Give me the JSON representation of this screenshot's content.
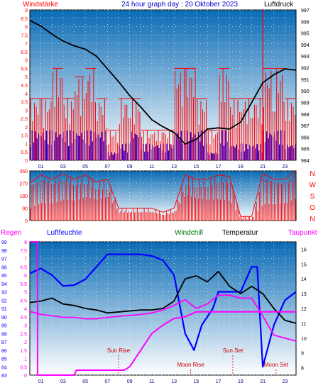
{
  "colors": {
    "frame": "#000000",
    "plot_top": "#0a6bb5",
    "plot_bottom": "#ffffff",
    "wind_gust": "#ff0000",
    "wind_avg": "#0000ff",
    "pressure": "#000000",
    "direction": "#ff0000",
    "rain": "#ff00ff",
    "humidity": "#0000ff",
    "windchill": "#007700",
    "temperature": "#000000",
    "dewpoint": "#ff00ff",
    "marker": "#cc0000"
  },
  "header": {
    "left": "Windstärke",
    "center": "24 hour graph day : 20 Oktober 2023",
    "right": "Luftdruck"
  },
  "direction_labels": [
    "N",
    "W",
    "S",
    "O",
    "N"
  ],
  "lower_header": {
    "regen": "Regen",
    "luftfeuchte": "Luftfeuchte",
    "windchill": "Windchill",
    "temperatur": "Temperatur",
    "taupunkt": "Taupunkt"
  },
  "annotations": {
    "sun_rise": "Sun Rise",
    "moon_rise": "Moon Rise",
    "sun_set": "Sun Set",
    "moon_set": "Moon Set"
  },
  "chart_data": [
    {
      "type": "line",
      "panel": "wind_pressure",
      "x_ticks": [
        "01",
        "03",
        "05",
        "07",
        "09",
        "11",
        "13",
        "15",
        "17",
        "19",
        "21",
        "23"
      ],
      "y_left_ticks": [
        "0",
        "0.5",
        "1",
        "1.5",
        "2",
        "2.5",
        "3",
        "3.5",
        "4",
        "4.5",
        "5",
        "5.5",
        "6",
        "6.5",
        "7",
        "7.5",
        "8",
        "8.5",
        "9"
      ],
      "y_left_range": [
        0,
        9
      ],
      "y_right_ticks": [
        "984",
        "985",
        "986",
        "987",
        "988",
        "989",
        "990",
        "991",
        "992",
        "993",
        "994",
        "995",
        "996",
        "997"
      ],
      "y_right_range": [
        984,
        997
      ],
      "pressure": [
        [
          0,
          996.1
        ],
        [
          1,
          995.6
        ],
        [
          2,
          994.9
        ],
        [
          3,
          994.3
        ],
        [
          4,
          993.9
        ],
        [
          5,
          993.6
        ],
        [
          6,
          993.0
        ],
        [
          7,
          991.9
        ],
        [
          8,
          990.8
        ],
        [
          9,
          989.6
        ],
        [
          10,
          988.6
        ],
        [
          11,
          987.5
        ],
        [
          12,
          986.9
        ],
        [
          13,
          986.4
        ],
        [
          14,
          985.4
        ],
        [
          15,
          985.8
        ],
        [
          16,
          986.7
        ],
        [
          17,
          986.8
        ],
        [
          18,
          986.7
        ],
        [
          19,
          987.3
        ],
        [
          20,
          989.0
        ],
        [
          21,
          990.7
        ],
        [
          22,
          991.4
        ],
        [
          23,
          991.9
        ],
        [
          24,
          991.8
        ]
      ],
      "gust_blocks": [
        [
          0,
          3.7
        ],
        [
          1,
          3.7
        ],
        [
          2,
          5.5
        ],
        [
          3,
          3.7
        ],
        [
          4,
          5.0
        ],
        [
          5,
          5.5
        ],
        [
          6,
          3.7
        ],
        [
          7,
          1.8
        ],
        [
          8,
          3.7
        ],
        [
          9,
          3.7
        ],
        [
          10,
          1.8
        ],
        [
          11,
          1.8
        ],
        [
          12,
          1.8
        ],
        [
          13,
          5.5
        ],
        [
          14,
          5.5
        ],
        [
          15,
          3.7
        ],
        [
          16,
          1.8
        ],
        [
          17,
          5.5
        ],
        [
          18,
          3.7
        ],
        [
          19,
          3.7
        ],
        [
          20,
          3.7
        ],
        [
          21,
          5.5
        ],
        [
          22,
          5.5
        ],
        [
          23,
          3.7
        ]
      ],
      "gust_peak": [
        21,
        9.0
      ],
      "avg_blocks": [
        [
          0,
          1.8
        ],
        [
          1,
          1.8
        ],
        [
          2,
          1.8
        ],
        [
          3,
          1.8
        ],
        [
          4,
          1.8
        ],
        [
          5,
          1.8
        ],
        [
          6,
          1.8
        ],
        [
          7,
          0.5
        ],
        [
          8,
          1.0
        ],
        [
          9,
          1.8
        ],
        [
          10,
          1.0
        ],
        [
          11,
          1.0
        ],
        [
          12,
          1.0
        ],
        [
          13,
          1.8
        ],
        [
          14,
          1.8
        ],
        [
          15,
          1.8
        ],
        [
          16,
          0.5
        ],
        [
          17,
          1.8
        ],
        [
          18,
          1.0
        ],
        [
          19,
          1.0
        ],
        [
          20,
          1.0
        ],
        [
          21,
          1.8
        ],
        [
          22,
          1.8
        ],
        [
          23,
          1.0
        ]
      ]
    },
    {
      "type": "area",
      "panel": "wind_direction",
      "x_ticks": [
        "01",
        "03",
        "05",
        "07",
        "09",
        "11",
        "13",
        "15",
        "17",
        "19",
        "21",
        "23"
      ],
      "y_ticks": [
        "0",
        "90",
        "180",
        "270",
        "360"
      ],
      "y_range": [
        0,
        360
      ],
      "direction": [
        [
          0,
          270
        ],
        [
          1,
          330
        ],
        [
          2,
          300
        ],
        [
          3,
          340
        ],
        [
          4,
          300
        ],
        [
          5,
          330
        ],
        [
          6,
          280
        ],
        [
          7,
          300
        ],
        [
          8,
          90
        ],
        [
          9,
          90
        ],
        [
          10,
          90
        ],
        [
          11,
          90
        ],
        [
          12,
          60
        ],
        [
          13,
          90
        ],
        [
          14,
          330
        ],
        [
          15,
          300
        ],
        [
          16,
          300
        ],
        [
          17,
          330
        ],
        [
          18,
          320
        ],
        [
          19,
          30
        ],
        [
          20,
          30
        ],
        [
          21,
          340
        ],
        [
          22,
          300
        ],
        [
          23,
          300
        ],
        [
          24,
          360
        ]
      ]
    },
    {
      "type": "line",
      "panel": "temperature_humidity",
      "x_ticks": [
        "01",
        "03",
        "05",
        "07",
        "09",
        "11",
        "13",
        "15",
        "17",
        "19",
        "21",
        "23"
      ],
      "y_left_rain_ticks": [
        "0",
        "0.5",
        "1",
        "1.5",
        "2",
        "2.5",
        "3",
        "3.5",
        "4",
        "4.5",
        "5",
        "5.5",
        "6",
        "6.5",
        "7",
        "7.5",
        "8"
      ],
      "y_left_rain_range": [
        0,
        8
      ],
      "y_left_humidity_ticks": [
        "83",
        "84",
        "85",
        "86",
        "87",
        "88",
        "89",
        "90",
        "91",
        "92",
        "93",
        "94",
        "95",
        "96",
        "97",
        "98",
        "99"
      ],
      "y_left_humidity_range": [
        83,
        99
      ],
      "y_right_ticks": [
        "8",
        "9",
        "10",
        "11",
        "12",
        "13",
        "14",
        "15",
        "16"
      ],
      "y_right_range": [
        7.5,
        16.5
      ],
      "series": [
        {
          "name": "Luftfeuchte",
          "values": [
            [
              0,
              95.2
            ],
            [
              1,
              95.8
            ],
            [
              2,
              95.0
            ],
            [
              3,
              93.7
            ],
            [
              4,
              93.8
            ],
            [
              5,
              94.5
            ],
            [
              6,
              96.0
            ],
            [
              7,
              97.5
            ],
            [
              10,
              97.5
            ],
            [
              11,
              97.3
            ],
            [
              12,
              96.8
            ],
            [
              13,
              95.0
            ],
            [
              14,
              88.0
            ],
            [
              14.8,
              86.0
            ],
            [
              15.5,
              89.0
            ],
            [
              16.5,
              91.0
            ],
            [
              17,
              93.0
            ],
            [
              18,
              93.0
            ],
            [
              19,
              93.0
            ],
            [
              20,
              96.0
            ],
            [
              20.5,
              96.0
            ],
            [
              21,
              84.0
            ],
            [
              22,
              89.0
            ],
            [
              23,
              92.0
            ],
            [
              24,
              93.0
            ]
          ]
        },
        {
          "name": "Temperatur",
          "values": [
            [
              0,
              12.4
            ],
            [
              1,
              12.5
            ],
            [
              2,
              12.7
            ],
            [
              3,
              12.3
            ],
            [
              4,
              12.2
            ],
            [
              5,
              12.0
            ],
            [
              6,
              11.9
            ],
            [
              7,
              11.7
            ],
            [
              10,
              11.9
            ],
            [
              11,
              11.9
            ],
            [
              12,
              12.0
            ],
            [
              13,
              12.5
            ],
            [
              14,
              14.0
            ],
            [
              15,
              14.2
            ],
            [
              16,
              13.8
            ],
            [
              17,
              14.5
            ],
            [
              18,
              13.5
            ],
            [
              19,
              13.0
            ],
            [
              20,
              13.5
            ],
            [
              21,
              13.0
            ],
            [
              22,
              12.0
            ],
            [
              23,
              11.2
            ],
            [
              24,
              11.0
            ]
          ]
        },
        {
          "name": "Taupunkt",
          "values": [
            [
              0,
              11.8
            ],
            [
              1,
              11.6
            ],
            [
              2,
              11.5
            ],
            [
              3,
              11.4
            ],
            [
              4,
              11.4
            ],
            [
              5,
              11.3
            ],
            [
              6,
              11.3
            ],
            [
              7,
              11.4
            ],
            [
              10,
              11.6
            ],
            [
              11,
              11.7
            ],
            [
              12,
              11.9
            ],
            [
              13,
              12.2
            ],
            [
              14,
              12.6
            ],
            [
              15,
              12.0
            ],
            [
              16,
              12.3
            ],
            [
              17,
              12.9
            ],
            [
              18,
              12.9
            ],
            [
              19,
              12.7
            ],
            [
              20,
              12.7
            ],
            [
              21,
              11.5
            ],
            [
              22,
              10.2
            ],
            [
              23,
              10.0
            ],
            [
              24,
              9.8
            ]
          ]
        },
        {
          "name": "Regen",
          "values": [
            [
              0,
              8.0
            ],
            [
              0.7,
              8.0
            ],
            [
              0.7,
              0
            ],
            [
              4,
              0
            ],
            [
              4.2,
              0.3
            ],
            [
              8.5,
              0.3
            ],
            [
              9,
              0.5
            ],
            [
              10,
              1.5
            ],
            [
              11,
              2.5
            ],
            [
              12,
              3.0
            ],
            [
              13,
              3.4
            ],
            [
              14,
              3.5
            ],
            [
              15,
              3.8
            ],
            [
              20,
              3.8
            ],
            [
              24,
              3.8
            ]
          ]
        }
      ],
      "markers": [
        {
          "label": "Sun Rise",
          "x": 8.0
        },
        {
          "label": "Moon Rise",
          "x": 14.5
        },
        {
          "label": "Sun Set",
          "x": 18.3
        },
        {
          "label": "Moon Set",
          "x": 22.2
        }
      ]
    }
  ]
}
